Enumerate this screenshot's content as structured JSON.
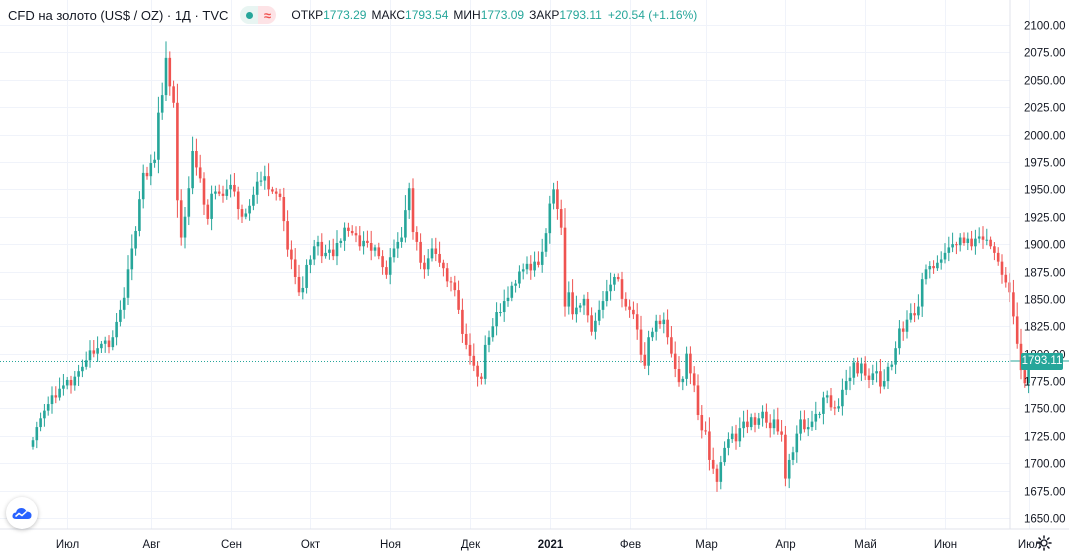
{
  "legend": {
    "symbol": "CFD на золото (US$ / OZ) · 1Д · TVC",
    "open_label": "ОТКР",
    "open_value": "1773.29",
    "high_label": "МАКС",
    "high_value": "1793.54",
    "low_label": "МИН",
    "low_value": "1773.09",
    "close_label": "ЗАКР",
    "close_value": "1793.11",
    "change": "+20.54 (+1.16%)"
  },
  "last_price_label": "1793.11",
  "icons": {
    "logo": "tradingview-cloud-icon",
    "settings": "gear-icon"
  },
  "colors": {
    "up": "#26a69a",
    "down": "#ef5350",
    "grid": "#f0f3fa",
    "axis_text": "#131722"
  },
  "chart_data": {
    "type": "candlestick",
    "title": "CFD на золото (US$ / OZ)",
    "interval": "1Д",
    "ylim": [
      1640,
      2110
    ],
    "yticks": [
      1650,
      1675,
      1700,
      1725,
      1750,
      1775,
      1800,
      1825,
      1850,
      1875,
      1900,
      1925,
      1950,
      1975,
      2000,
      2025,
      2050,
      2075,
      2100
    ],
    "ytick_labels": [
      "1650.00",
      "1675.00",
      "1700.00",
      "1725.00",
      "1750.00",
      "1775.00",
      "1800.00",
      "1825.00",
      "1850.00",
      "1875.00",
      "1900.00",
      "1925.00",
      "1950.00",
      "1975.00",
      "2000.00",
      "2025.00",
      "2050.00",
      "2075.00",
      "2100.00"
    ],
    "xtick_labels": [
      "Июл",
      "Авг",
      "Сен",
      "Окт",
      "Ноя",
      "Дек",
      "2021",
      "Фев",
      "Мар",
      "Апр",
      "Май",
      "Июн",
      "Июл"
    ],
    "xtick_index": [
      9,
      31,
      52,
      73,
      94,
      115,
      136,
      157,
      177,
      198,
      219,
      240,
      262
    ],
    "last_close": 1793.11,
    "grid": true,
    "close": [
      1721,
      1733,
      1741,
      1748,
      1754,
      1762,
      1760,
      1768,
      1771,
      1776,
      1771,
      1779,
      1784,
      1788,
      1794,
      1803,
      1800,
      1805,
      1809,
      1812,
      1806,
      1815,
      1829,
      1840,
      1851,
      1877,
      1896,
      1912,
      1941,
      1965,
      1962,
      1974,
      1977,
      2020,
      2036,
      2070,
      2044,
      2029,
      1940,
      1906,
      1925,
      1951,
      1985,
      1970,
      1960,
      1936,
      1923,
      1946,
      1948,
      1946,
      1944,
      1950,
      1954,
      1948,
      1932,
      1925,
      1928,
      1935,
      1945,
      1957,
      1958,
      1962,
      1950,
      1948,
      1946,
      1943,
      1921,
      1895,
      1886,
      1870,
      1856,
      1860,
      1881,
      1886,
      1898,
      1902,
      1889,
      1892,
      1895,
      1889,
      1901,
      1903,
      1915,
      1912,
      1910,
      1908,
      1898,
      1903,
      1901,
      1894,
      1897,
      1889,
      1879,
      1872,
      1888,
      1896,
      1902,
      1906,
      1931,
      1951,
      1911,
      1902,
      1883,
      1877,
      1887,
      1896,
      1891,
      1883,
      1878,
      1866,
      1865,
      1858,
      1840,
      1818,
      1808,
      1798,
      1789,
      1779,
      1777,
      1808,
      1815,
      1825,
      1838,
      1838,
      1848,
      1851,
      1862,
      1864,
      1875,
      1877,
      1882,
      1876,
      1884,
      1881,
      1893,
      1910,
      1937,
      1950,
      1932,
      1915,
      1843,
      1856,
      1836,
      1842,
      1844,
      1850,
      1835,
      1820,
      1830,
      1840,
      1848,
      1857,
      1863,
      1870,
      1868,
      1850,
      1843,
      1840,
      1836,
      1822,
      1799,
      1789,
      1815,
      1820,
      1830,
      1827,
      1831,
      1815,
      1800,
      1786,
      1774,
      1777,
      1800,
      1782,
      1771,
      1744,
      1730,
      1729,
      1703,
      1695,
      1683,
      1701,
      1714,
      1722,
      1727,
      1720,
      1732,
      1738,
      1733,
      1742,
      1735,
      1741,
      1747,
      1737,
      1732,
      1740,
      1729,
      1726,
      1686,
      1703,
      1710,
      1727,
      1740,
      1731,
      1733,
      1738,
      1745,
      1745,
      1760,
      1762,
      1751,
      1750,
      1752,
      1767,
      1775,
      1778,
      1792,
      1782,
      1791,
      1780,
      1776,
      1782,
      1784,
      1770,
      1775,
      1788,
      1790,
      1805,
      1823,
      1820,
      1831,
      1837,
      1835,
      1843,
      1868,
      1877,
      1880,
      1878,
      1883,
      1886,
      1892,
      1897,
      1900,
      1899,
      1906,
      1901,
      1905,
      1898,
      1905,
      1907,
      1904,
      1904,
      1898,
      1892,
      1884,
      1872,
      1865,
      1856,
      1834,
      1809,
      1785,
      1773,
      1793
    ]
  }
}
